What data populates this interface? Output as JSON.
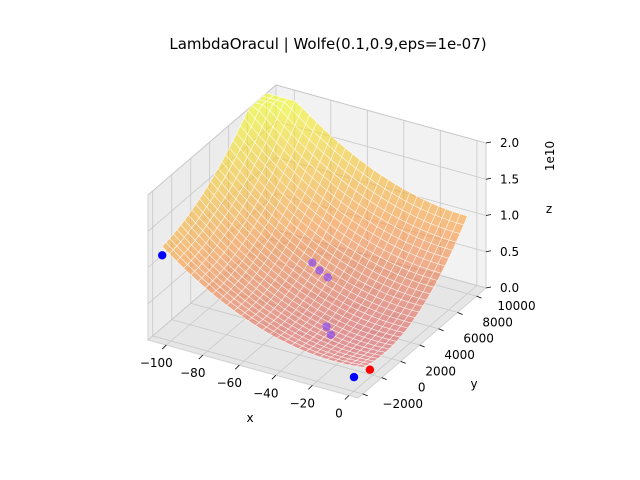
{
  "chart_data": {
    "type": "surface3d",
    "title": "LambdaOracul | Wolfe(0.1,0.9,eps=1e-07)",
    "xlabel": "x",
    "ylabel": "y",
    "zlabel": "z",
    "z_offset_label": "1e10",
    "xlim": [
      -110,
      5
    ],
    "ylim": [
      -2500,
      11000
    ],
    "zlim": [
      0,
      2.0
    ],
    "x_ticks": [
      "−100",
      "−80",
      "−60",
      "−40",
      "−20",
      "0"
    ],
    "x_tick_values": [
      -100,
      -80,
      -60,
      -40,
      -20,
      0
    ],
    "y_ticks": [
      "−2000",
      "0",
      "2000",
      "4000",
      "6000",
      "8000",
      "10000"
    ],
    "y_tick_values": [
      -2000,
      0,
      2000,
      4000,
      6000,
      8000,
      10000
    ],
    "z_ticks": [
      "0.0",
      "0.5",
      "1.0",
      "1.5",
      "2.0"
    ],
    "z_tick_values": [
      0,
      0.5,
      1.0,
      1.5,
      2.0
    ],
    "colormap": "plasma",
    "grid": true,
    "points": [
      {
        "x": -110,
        "y": -1000,
        "z": 1.0,
        "color": "#0000ff"
      },
      {
        "x": -60,
        "y": 5200,
        "z": 0.55,
        "color": "#7a3cff"
      },
      {
        "x": -55,
        "y": 5000,
        "z": 0.5,
        "color": "#7a3cff"
      },
      {
        "x": -50,
        "y": 4900,
        "z": 0.45,
        "color": "#7a3cff"
      },
      {
        "x": -32,
        "y": 1300,
        "z": 0.3,
        "color": "#7a3cff"
      },
      {
        "x": -28,
        "y": 1000,
        "z": 0.25,
        "color": "#7a3cff"
      },
      {
        "x": -5,
        "y": -1000,
        "z": 0.05,
        "color": "#0000ff"
      },
      {
        "x": -2,
        "y": 100,
        "z": 0.05,
        "color": "#ff0000"
      }
    ]
  }
}
